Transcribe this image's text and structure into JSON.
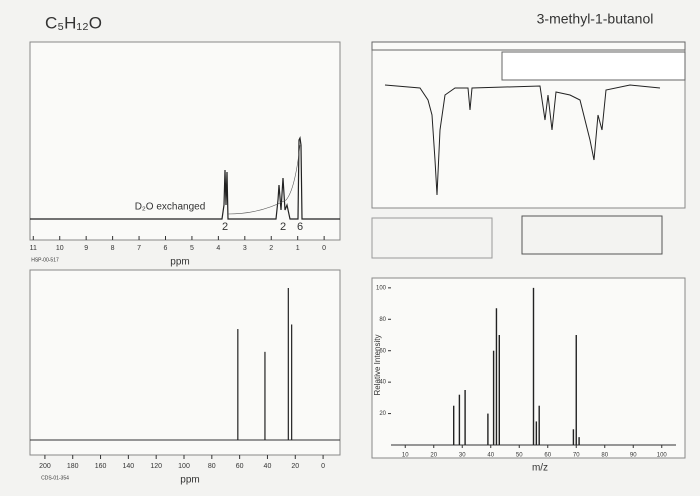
{
  "header": {
    "formula": "C₅H₁₂O",
    "name": "3-methyl-1-butanol"
  },
  "h_nmr": {
    "annotation": "D₂O exchanged",
    "integrations": [
      "2",
      "2",
      "6"
    ],
    "xlim": [
      11.2,
      -0.6
    ],
    "xticks": [
      11,
      10,
      9,
      8,
      7,
      6,
      5,
      4,
      3,
      2,
      1,
      0
    ],
    "x_label": "ppm",
    "code": "HSP-00-517"
  },
  "c_nmr": {
    "xlim": [
      210,
      -10
    ],
    "xticks": [
      200,
      180,
      160,
      140,
      120,
      100,
      80,
      60,
      40,
      20,
      0
    ],
    "x_label": "ppm",
    "code": "CDS-01-354",
    "peaks_ppm": [
      61.3,
      41.8,
      25.0,
      22.6
    ],
    "peak_heights": [
      73,
      58,
      100,
      76
    ]
  },
  "mass_spectrum": {
    "y_label": "Relative Intensity",
    "x_label": "m/z",
    "xlim": [
      5,
      105
    ],
    "ylim": [
      0,
      105
    ],
    "xticks": [
      10,
      20,
      30,
      40,
      50,
      60,
      70,
      80,
      90,
      100
    ],
    "yticks": [
      20,
      40,
      60,
      80,
      100
    ],
    "mz": [
      27,
      29,
      31,
      39,
      41,
      42,
      43,
      55,
      56,
      57,
      69,
      70,
      71
    ],
    "intensity": [
      25,
      32,
      35,
      20,
      60,
      87,
      70,
      100,
      15,
      25,
      10,
      70,
      5
    ]
  }
}
